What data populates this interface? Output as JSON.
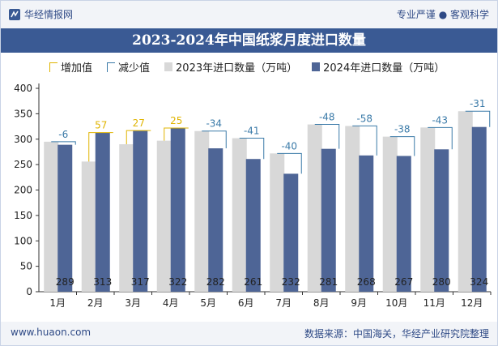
{
  "header": {
    "brand": "华经情报网",
    "tagline": "专业严谨 ● 客观科学"
  },
  "title": "2023-2024年中国纸浆月度进口数量",
  "legend": {
    "increase": "增加值",
    "decrease": "减少值",
    "y2023": "2023年进口数量（万吨）",
    "y2024": "2024年进口数量（万吨）"
  },
  "footer": {
    "url": "www.huaon.com",
    "source": "数据来源：中国海关，华经产业研究院整理"
  },
  "colors": {
    "bar2023": "#d8d8d8",
    "bar2024": "#4e6596",
    "increase": "#e0b400",
    "decrease": "#3a7aa8",
    "title_bg": "#3a5a94"
  },
  "chart_data": {
    "type": "bar",
    "categories": [
      "1月",
      "2月",
      "3月",
      "4月",
      "5月",
      "6月",
      "7月",
      "8月",
      "9月",
      "10月",
      "11月",
      "12月"
    ],
    "series": [
      {
        "name": "2023年进口数量（万吨）",
        "values": [
          295,
          256,
          290,
          297,
          316,
          302,
          272,
          329,
          326,
          305,
          323,
          355
        ]
      },
      {
        "name": "2024年进口数量（万吨）",
        "values": [
          289,
          313,
          317,
          322,
          282,
          261,
          232,
          281,
          268,
          267,
          280,
          324
        ]
      }
    ],
    "change": [
      -6,
      57,
      27,
      25,
      -34,
      -41,
      -40,
      -48,
      -58,
      -38,
      -43,
      -31
    ],
    "change_labels": [
      "-6",
      "57",
      "27",
      "25",
      "-34",
      "-41",
      "-40",
      "-48",
      "-58",
      "-38",
      "-43",
      "-31"
    ],
    "value_labels_2024": [
      "289",
      "313",
      "317",
      "322",
      "282",
      "261",
      "232",
      "281",
      "268",
      "267",
      "280",
      "324"
    ],
    "y_ticks": [
      "0",
      "50",
      "100",
      "150",
      "200",
      "250",
      "300",
      "350",
      "400"
    ],
    "ylim": [
      0,
      400
    ],
    "legend_position": "top"
  }
}
